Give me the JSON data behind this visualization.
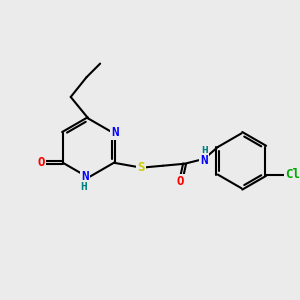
{
  "bg_color": "#ebebeb",
  "bond_color": "#000000",
  "bond_width": 1.5,
  "atom_colors": {
    "N": "#0000ff",
    "O": "#ff0000",
    "S": "#cccc00",
    "Cl": "#00aa00",
    "H_label": "#008080",
    "C": "#000000"
  },
  "font_size": 9,
  "font_size_small": 8
}
